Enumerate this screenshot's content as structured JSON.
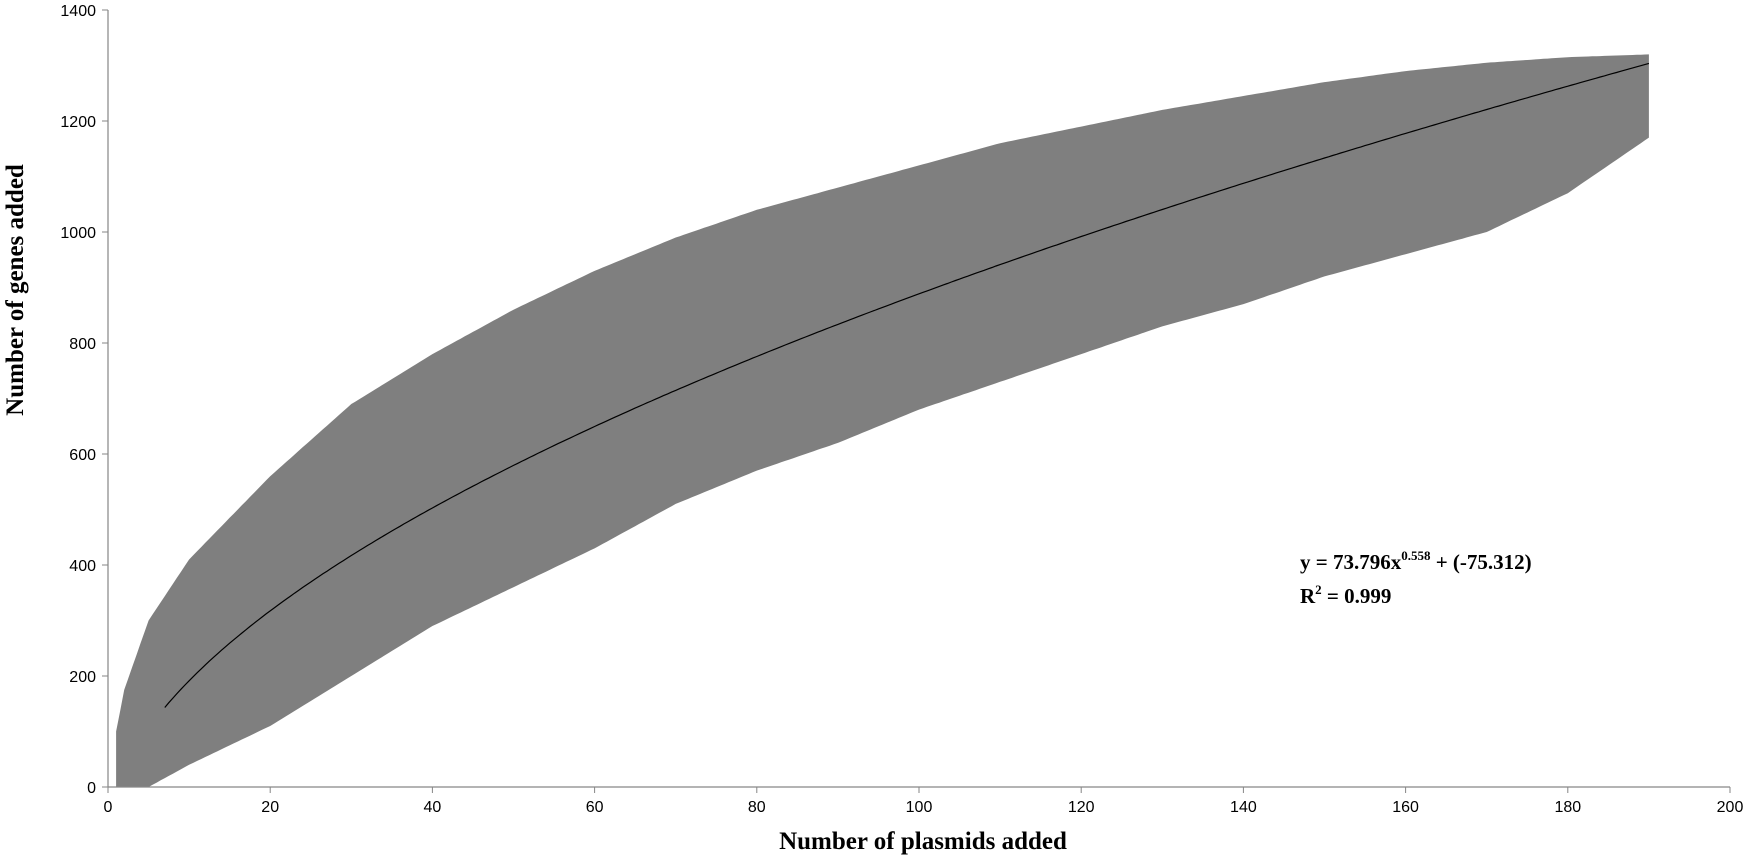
{
  "chart_data": {
    "type": "scatter",
    "title": "",
    "xlabel": "Number of plasmids added",
    "ylabel": "Number of genes added",
    "xlim": [
      0,
      200
    ],
    "ylim": [
      0,
      1400
    ],
    "x_ticks": [
      "0",
      "20",
      "40",
      "60",
      "80",
      "100",
      "120",
      "140",
      "160",
      "180",
      "200"
    ],
    "y_ticks": [
      "0",
      "200",
      "400",
      "600",
      "800",
      "1000",
      "1200",
      "1400"
    ],
    "grid": false,
    "legend": "none",
    "marker": "diamond",
    "colors": {
      "points": "#7f7f7f",
      "fit_line": "#000000",
      "axis": "#868686"
    },
    "series": [
      {
        "points": "dense cloud of simulated accumulation values for x = 1 to 190",
        "envelope": {
          "x": [
            1,
            2,
            5,
            10,
            20,
            30,
            40,
            50,
            60,
            70,
            80,
            90,
            100,
            110,
            120,
            130,
            140,
            150,
            160,
            170,
            180,
            190
          ],
          "lower": [
            0,
            0,
            0,
            40,
            110,
            200,
            290,
            360,
            430,
            510,
            570,
            620,
            680,
            730,
            780,
            830,
            870,
            920,
            960,
            1000,
            1070,
            1170
          ],
          "upper": [
            100,
            175,
            300,
            410,
            560,
            690,
            780,
            860,
            930,
            990,
            1040,
            1080,
            1120,
            1160,
            1190,
            1220,
            1245,
            1270,
            1290,
            1305,
            1315,
            1320
          ]
        }
      }
    ],
    "fit": {
      "a": 73.796,
      "b": 0.558,
      "c": -75.312,
      "x_range": [
        7,
        190
      ]
    },
    "annotation": {
      "eq_prefix": "y = 73.796x",
      "eq_exponent": "0.558",
      "eq_suffix": " + (-75.312)",
      "r2_prefix": "R",
      "r2_exponent": "2",
      "r2_suffix": " = 0.999"
    }
  }
}
